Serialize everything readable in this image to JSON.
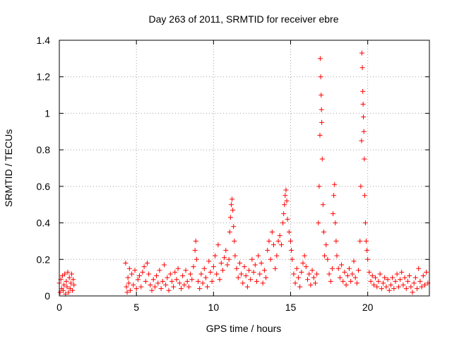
{
  "chart_data": {
    "type": "scatter",
    "title": "Day 263 of 2011, SRMTID for receiver ebre",
    "xlabel": "GPS time / hours",
    "ylabel": "SRMTID / TECUs",
    "xlim": [
      0,
      24
    ],
    "ylim": [
      0,
      1.4
    ],
    "xticks": [
      0,
      5,
      10,
      15,
      20
    ],
    "xtick_labels": [
      "0",
      "5",
      "10",
      "15",
      "20"
    ],
    "yticks": [
      0,
      0.2,
      0.4,
      0.6,
      0.8,
      1.0,
      1.2,
      1.4
    ],
    "ytick_labels": [
      "0",
      "0.2",
      "0.4",
      "0.6",
      "0.8",
      "1",
      "1.2",
      "1.4"
    ],
    "grid": true,
    "marker": "+",
    "color": "#ff0000",
    "series": [
      {
        "name": "SRMTID",
        "points": [
          [
            0.0,
            0.07
          ],
          [
            0.05,
            0.02
          ],
          [
            0.1,
            0.09
          ],
          [
            0.15,
            0.04
          ],
          [
            0.2,
            0.11
          ],
          [
            0.25,
            0.03
          ],
          [
            0.3,
            0.06
          ],
          [
            0.35,
            0.12
          ],
          [
            0.4,
            0.01
          ],
          [
            0.45,
            0.08
          ],
          [
            0.5,
            0.05
          ],
          [
            0.55,
            0.13
          ],
          [
            0.6,
            0.02
          ],
          [
            0.65,
            0.1
          ],
          [
            0.7,
            0.04
          ],
          [
            0.75,
            0.07
          ],
          [
            0.8,
            0.12
          ],
          [
            0.85,
            0.03
          ],
          [
            0.9,
            0.09
          ],
          [
            0.95,
            0.06
          ],
          [
            4.3,
            0.18
          ],
          [
            4.35,
            0.05
          ],
          [
            4.4,
            0.02
          ],
          [
            4.45,
            0.1
          ],
          [
            4.5,
            0.07
          ],
          [
            4.55,
            0.15
          ],
          [
            4.6,
            0.03
          ],
          [
            4.7,
            0.12
          ],
          [
            4.8,
            0.06
          ],
          [
            4.9,
            0.14
          ],
          [
            5.0,
            0.04
          ],
          [
            5.1,
            0.09
          ],
          [
            5.2,
            0.11
          ],
          [
            5.3,
            0.05
          ],
          [
            5.4,
            0.13
          ],
          [
            5.5,
            0.16
          ],
          [
            5.6,
            0.08
          ],
          [
            5.7,
            0.18
          ],
          [
            5.8,
            0.12
          ],
          [
            5.9,
            0.06
          ],
          [
            6.0,
            0.03
          ],
          [
            6.1,
            0.09
          ],
          [
            6.2,
            0.05
          ],
          [
            6.3,
            0.11
          ],
          [
            6.4,
            0.07
          ],
          [
            6.5,
            0.14
          ],
          [
            6.6,
            0.04
          ],
          [
            6.7,
            0.08
          ],
          [
            6.8,
            0.17
          ],
          [
            6.9,
            0.06
          ],
          [
            7.0,
            0.1
          ],
          [
            7.1,
            0.03
          ],
          [
            7.2,
            0.12
          ],
          [
            7.3,
            0.08
          ],
          [
            7.4,
            0.05
          ],
          [
            7.5,
            0.13
          ],
          [
            7.6,
            0.09
          ],
          [
            7.7,
            0.15
          ],
          [
            7.8,
            0.07
          ],
          [
            7.9,
            0.04
          ],
          [
            8.0,
            0.11
          ],
          [
            8.1,
            0.06
          ],
          [
            8.2,
            0.14
          ],
          [
            8.3,
            0.08
          ],
          [
            8.4,
            0.05
          ],
          [
            8.5,
            0.12
          ],
          [
            8.6,
            0.09
          ],
          [
            8.7,
            0.16
          ],
          [
            8.8,
            0.25
          ],
          [
            8.85,
            0.3
          ],
          [
            8.9,
            0.2
          ],
          [
            9.0,
            0.08
          ],
          [
            9.1,
            0.04
          ],
          [
            9.2,
            0.12
          ],
          [
            9.3,
            0.07
          ],
          [
            9.4,
            0.15
          ],
          [
            9.5,
            0.1
          ],
          [
            9.6,
            0.05
          ],
          [
            9.7,
            0.19
          ],
          [
            9.8,
            0.13
          ],
          [
            9.9,
            0.08
          ],
          [
            10.0,
            0.16
          ],
          [
            10.1,
            0.22
          ],
          [
            10.2,
            0.12
          ],
          [
            10.3,
            0.28
          ],
          [
            10.4,
            0.09
          ],
          [
            10.5,
            0.18
          ],
          [
            10.6,
            0.14
          ],
          [
            10.7,
            0.21
          ],
          [
            10.8,
            0.25
          ],
          [
            10.9,
            0.17
          ],
          [
            11.0,
            0.2
          ],
          [
            11.05,
            0.35
          ],
          [
            11.1,
            0.43
          ],
          [
            11.15,
            0.5
          ],
          [
            11.2,
            0.53
          ],
          [
            11.25,
            0.47
          ],
          [
            11.3,
            0.38
          ],
          [
            11.35,
            0.3
          ],
          [
            11.4,
            0.22
          ],
          [
            11.5,
            0.15
          ],
          [
            11.6,
            0.1
          ],
          [
            11.7,
            0.18
          ],
          [
            11.8,
            0.12
          ],
          [
            11.9,
            0.07
          ],
          [
            12.0,
            0.16
          ],
          [
            12.1,
            0.11
          ],
          [
            12.2,
            0.05
          ],
          [
            12.3,
            0.14
          ],
          [
            12.4,
            0.09
          ],
          [
            12.5,
            0.2
          ],
          [
            12.6,
            0.13
          ],
          [
            12.7,
            0.17
          ],
          [
            12.8,
            0.08
          ],
          [
            12.9,
            0.22
          ],
          [
            13.0,
            0.12
          ],
          [
            13.1,
            0.18
          ],
          [
            13.2,
            0.07
          ],
          [
            13.3,
            0.14
          ],
          [
            13.4,
            0.1
          ],
          [
            13.5,
            0.25
          ],
          [
            13.6,
            0.3
          ],
          [
            13.7,
            0.2
          ],
          [
            13.8,
            0.35
          ],
          [
            13.9,
            0.28
          ],
          [
            14.0,
            0.15
          ],
          [
            14.1,
            0.22
          ],
          [
            14.2,
            0.3
          ],
          [
            14.3,
            0.33
          ],
          [
            14.4,
            0.28
          ],
          [
            14.5,
            0.4
          ],
          [
            14.55,
            0.45
          ],
          [
            14.6,
            0.5
          ],
          [
            14.65,
            0.55
          ],
          [
            14.7,
            0.58
          ],
          [
            14.75,
            0.52
          ],
          [
            14.8,
            0.42
          ],
          [
            14.9,
            0.35
          ],
          [
            15.0,
            0.3
          ],
          [
            15.05,
            0.25
          ],
          [
            15.1,
            0.2
          ],
          [
            15.2,
            0.12
          ],
          [
            15.3,
            0.07
          ],
          [
            15.4,
            0.15
          ],
          [
            15.5,
            0.1
          ],
          [
            15.6,
            0.05
          ],
          [
            15.7,
            0.13
          ],
          [
            15.8,
            0.18
          ],
          [
            15.9,
            0.22
          ],
          [
            16.0,
            0.16
          ],
          [
            16.1,
            0.09
          ],
          [
            16.2,
            0.12
          ],
          [
            16.3,
            0.06
          ],
          [
            16.4,
            0.14
          ],
          [
            16.5,
            0.1
          ],
          [
            16.6,
            0.07
          ],
          [
            16.7,
            0.12
          ],
          [
            16.8,
            0.4
          ],
          [
            16.85,
            0.6
          ],
          [
            16.9,
            0.88
          ],
          [
            16.92,
            1.3
          ],
          [
            16.95,
            1.2
          ],
          [
            16.98,
            1.1
          ],
          [
            17.0,
            1.02
          ],
          [
            17.02,
            0.95
          ],
          [
            17.05,
            0.75
          ],
          [
            17.1,
            0.5
          ],
          [
            17.15,
            0.35
          ],
          [
            17.2,
            0.22
          ],
          [
            17.3,
            0.28
          ],
          [
            17.4,
            0.2
          ],
          [
            17.5,
            0.12
          ],
          [
            17.6,
            0.08
          ],
          [
            17.7,
            0.15
          ],
          [
            17.75,
            0.45
          ],
          [
            17.8,
            0.55
          ],
          [
            17.85,
            0.61
          ],
          [
            17.9,
            0.4
          ],
          [
            17.95,
            0.3
          ],
          [
            18.0,
            0.22
          ],
          [
            18.1,
            0.15
          ],
          [
            18.2,
            0.1
          ],
          [
            18.3,
            0.17
          ],
          [
            18.4,
            0.08
          ],
          [
            18.5,
            0.13
          ],
          [
            18.6,
            0.06
          ],
          [
            18.7,
            0.11
          ],
          [
            18.8,
            0.15
          ],
          [
            18.9,
            0.08
          ],
          [
            19.0,
            0.12
          ],
          [
            19.1,
            0.19
          ],
          [
            19.2,
            0.1
          ],
          [
            19.3,
            0.07
          ],
          [
            19.4,
            0.14
          ],
          [
            19.5,
            0.3
          ],
          [
            19.55,
            0.6
          ],
          [
            19.6,
            0.85
          ],
          [
            19.62,
            1.33
          ],
          [
            19.65,
            1.25
          ],
          [
            19.68,
            1.12
          ],
          [
            19.7,
            1.05
          ],
          [
            19.72,
            0.98
          ],
          [
            19.75,
            0.9
          ],
          [
            19.78,
            0.75
          ],
          [
            19.8,
            0.55
          ],
          [
            19.85,
            0.4
          ],
          [
            19.9,
            0.3
          ],
          [
            19.95,
            0.25
          ],
          [
            20.0,
            0.2
          ],
          [
            20.1,
            0.13
          ],
          [
            20.2,
            0.08
          ],
          [
            20.3,
            0.11
          ],
          [
            20.4,
            0.06
          ],
          [
            20.5,
            0.1
          ],
          [
            20.6,
            0.05
          ],
          [
            20.7,
            0.08
          ],
          [
            20.8,
            0.12
          ],
          [
            20.9,
            0.04
          ],
          [
            21.0,
            0.07
          ],
          [
            21.1,
            0.1
          ],
          [
            21.2,
            0.05
          ],
          [
            21.3,
            0.09
          ],
          [
            21.4,
            0.03
          ],
          [
            21.5,
            0.06
          ],
          [
            21.6,
            0.1
          ],
          [
            21.7,
            0.04
          ],
          [
            21.8,
            0.08
          ],
          [
            21.9,
            0.12
          ],
          [
            22.0,
            0.05
          ],
          [
            22.1,
            0.09
          ],
          [
            22.2,
            0.13
          ],
          [
            22.3,
            0.06
          ],
          [
            22.4,
            0.1
          ],
          [
            22.5,
            0.04
          ],
          [
            22.6,
            0.08
          ],
          [
            22.7,
            0.11
          ],
          [
            22.8,
            0.05
          ],
          [
            22.9,
            0.02
          ],
          [
            23.0,
            0.07
          ],
          [
            23.1,
            0.1
          ],
          [
            23.2,
            0.04
          ],
          [
            23.3,
            0.15
          ],
          [
            23.4,
            0.08
          ],
          [
            23.5,
            0.05
          ],
          [
            23.6,
            0.11
          ],
          [
            23.7,
            0.06
          ],
          [
            23.8,
            0.13
          ],
          [
            23.9,
            0.07
          ]
        ]
      }
    ]
  }
}
